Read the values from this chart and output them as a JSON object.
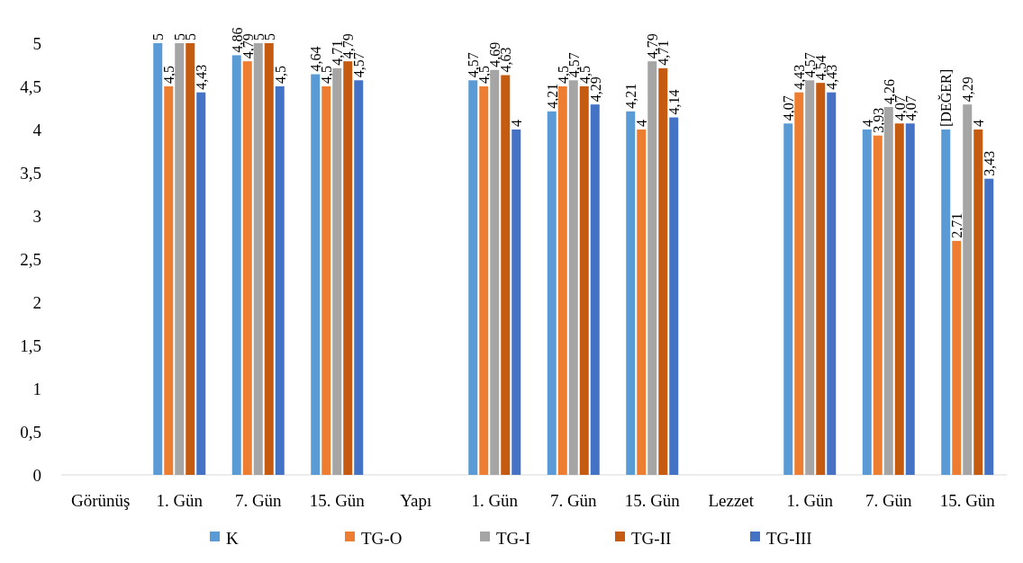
{
  "chart_data": {
    "type": "bar",
    "categories": [
      "Görünüş",
      "1. Gün",
      "7. Gün",
      "15. Gün",
      "Yapı",
      "1. Gün",
      "7. Gün",
      "15. Gün",
      "Lezzet",
      "1. Gün",
      "7. Gün",
      "15. Gün"
    ],
    "series": [
      {
        "name": "K",
        "color": "#5b9bd5",
        "values": [
          null,
          5,
          4.86,
          4.64,
          null,
          4.57,
          4.21,
          4.21,
          null,
          4.07,
          4,
          4
        ],
        "value_labels": [
          null,
          "5",
          "4,86",
          "4,64",
          null,
          "4,57",
          "4,21",
          "4,21",
          null,
          "4,07",
          "4",
          "[DEĞER]"
        ]
      },
      {
        "name": "TG-O",
        "color": "#ed7d31",
        "values": [
          null,
          4.5,
          4.79,
          4.5,
          null,
          4.5,
          4.5,
          4,
          null,
          4.43,
          3.93,
          2.71
        ],
        "value_labels": [
          null,
          "4,5",
          "4,79",
          "4,5",
          null,
          "4,5",
          "4,5",
          "4",
          null,
          "4,43",
          "3,93",
          "2,71"
        ]
      },
      {
        "name": "TG-I",
        "color": "#a5a5a5",
        "values": [
          null,
          5,
          5,
          4.71,
          null,
          4.69,
          4.57,
          4.79,
          null,
          4.57,
          4.26,
          4.29
        ],
        "value_labels": [
          null,
          "5",
          "5",
          "4,71",
          null,
          "4,69",
          "4,57",
          "4,79",
          null,
          "4,57",
          "4,26",
          "4,29"
        ]
      },
      {
        "name": "TG-II",
        "color": "#c55a11",
        "values": [
          null,
          5,
          5,
          4.79,
          null,
          4.63,
          4.5,
          4.71,
          null,
          4.54,
          4.07,
          4
        ],
        "value_labels": [
          null,
          "5",
          "5",
          "4,79",
          null,
          "4,63",
          "4,5",
          "4,71",
          null,
          "4,54",
          "4,07",
          "4"
        ]
      },
      {
        "name": "TG-III",
        "color": "#4472c4",
        "values": [
          null,
          4.43,
          4.5,
          4.57,
          null,
          4,
          4.29,
          4.14,
          null,
          4.43,
          4.07,
          3.43
        ],
        "value_labels": [
          null,
          "4,43",
          "4,5",
          "4,57",
          null,
          "4",
          "4,29",
          "4,14",
          null,
          "4,43",
          "4,07",
          "3,43"
        ]
      }
    ],
    "ylim": [
      0,
      5
    ],
    "yticks": [
      0,
      {
        "value": 0.5,
        "label": "0,5"
      },
      1,
      {
        "value": 1.5,
        "label": "1,5"
      },
      2,
      {
        "value": 2.5,
        "label": "2,5"
      },
      3,
      {
        "value": 3.5,
        "label": "3,5"
      },
      4,
      {
        "value": 4.5,
        "label": "4,5"
      },
      5
    ],
    "grid": false,
    "legend": "bottom"
  }
}
